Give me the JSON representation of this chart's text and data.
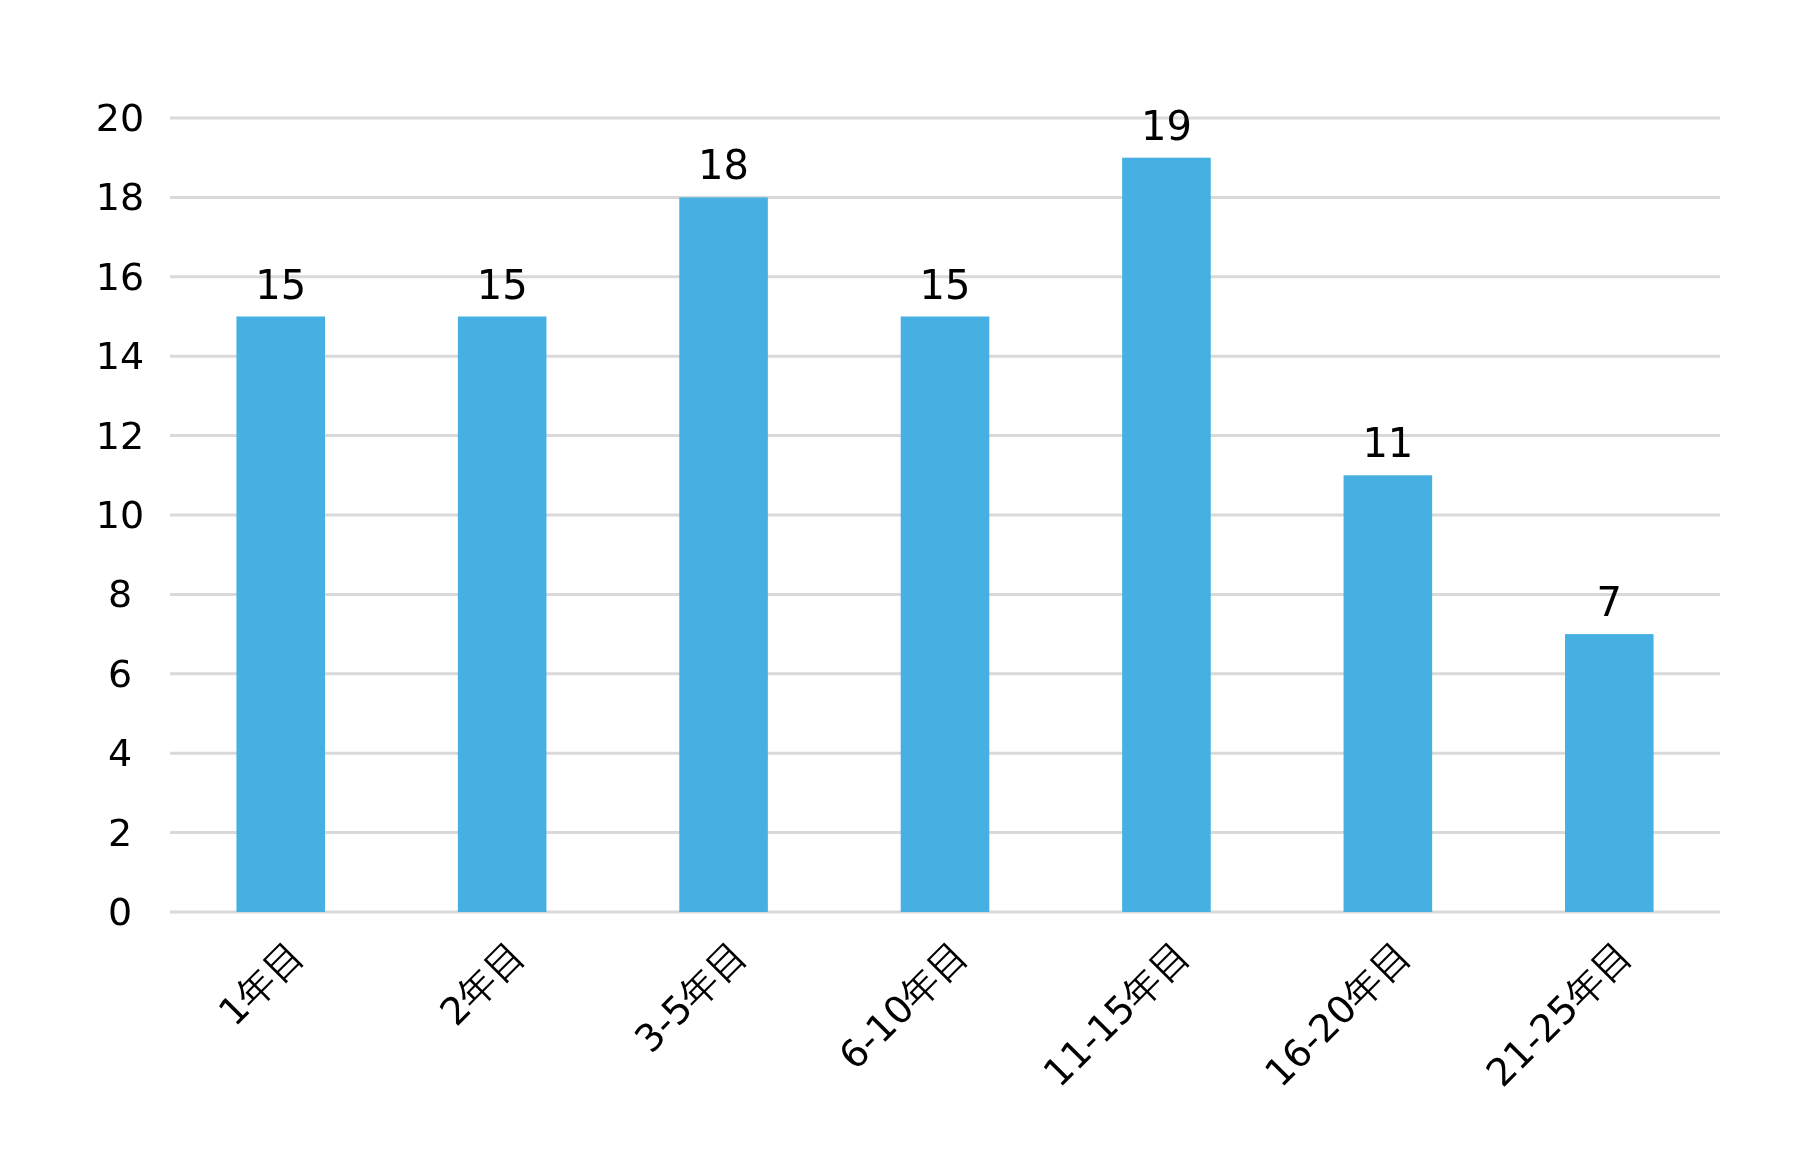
{
  "chart_data": {
    "type": "bar",
    "categories": [
      "1年目",
      "2年目",
      "3-5年目",
      "6-10年目",
      "11-15年目",
      "16-20年目",
      "21-25年目"
    ],
    "values": [
      15,
      15,
      18,
      15,
      19,
      11,
      7
    ],
    "color": "#45b0e1",
    "ylim": [
      0,
      20
    ],
    "yticks": [
      0,
      2,
      4,
      6,
      8,
      10,
      12,
      14,
      16,
      18,
      20
    ],
    "grid": "y",
    "data_labels": true
  }
}
